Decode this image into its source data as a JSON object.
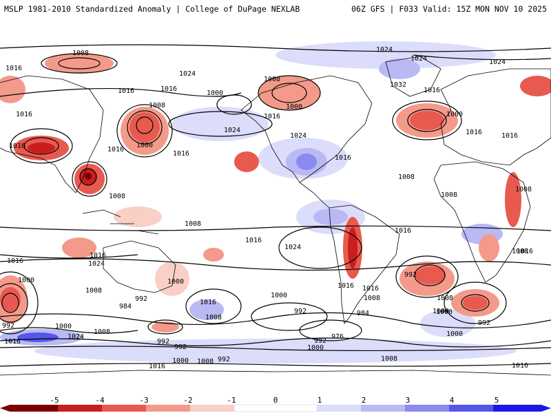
{
  "header": {
    "left": "MSLP 1981-2010 Standardized Anomaly | College of DuPage NEXLAB",
    "right": "06Z GFS | F033 Valid: 15Z MON NOV 10 2025"
  },
  "colors": {
    "neg5": "#7a0000",
    "neg4": "#c81e1e",
    "neg3": "#e85a50",
    "neg2": "#f39a8a",
    "neg1": "#f9cfc6",
    "zero": "#ffffff",
    "pos1": "#dcdcfb",
    "pos2": "#b9b9f4",
    "pos3": "#8a8af0",
    "pos4": "#5656ec",
    "pos5": "#1a1ae6",
    "isobar": "#000000",
    "coast": "#000000"
  },
  "map": {
    "isobar_labels": [
      "1008",
      "1024",
      "1024",
      "1024",
      "1024",
      "1032",
      "1016",
      "1016",
      "1000",
      "1008",
      "1016",
      "1016",
      "1008",
      "1016",
      "1000",
      "1000",
      "1024",
      "1016",
      "1024",
      "1016",
      "1016",
      "1016",
      "1000",
      "1016",
      "1016",
      "1016",
      "1008",
      "1008",
      "1008",
      "1008",
      "1008",
      "1016",
      "1008",
      "1016",
      "1024",
      "1016",
      "1024",
      "1016",
      "1016",
      "1016",
      "1000",
      "1000",
      "992",
      "1000",
      "1016",
      "1008",
      "1000",
      "992",
      "984",
      "1000",
      "1008",
      "992",
      "1008",
      "1016",
      "1008",
      "992",
      "992",
      "984",
      "992",
      "976",
      "992",
      "1000",
      "1000",
      "1000",
      "1024",
      "1008",
      "992",
      "1016",
      "1000",
      "1008",
      "992",
      "1008",
      "1016",
      "1016"
    ]
  },
  "legend": {
    "ticks": [
      "-5",
      "-4",
      "-3",
      "-2",
      "-1",
      "0",
      "1",
      "2",
      "3",
      "4",
      "5"
    ]
  }
}
